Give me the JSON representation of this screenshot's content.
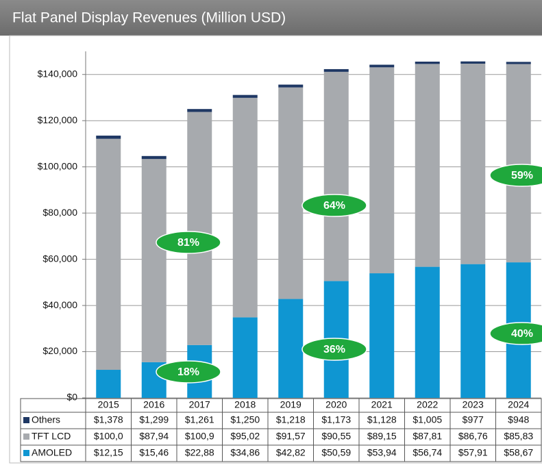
{
  "chart_data": {
    "type": "stacked_bar",
    "title": "Flat Panel Display Revenues (Million USD)",
    "categories": [
      "2015",
      "2016",
      "2017",
      "2018",
      "2019",
      "2020",
      "2021",
      "2022",
      "2023",
      "2024"
    ],
    "series": [
      {
        "name": "Others",
        "color": "#1f3864",
        "values": [
          1378,
          1299,
          1261,
          1250,
          1218,
          1173,
          1128,
          1005,
          977,
          948
        ],
        "value_labels": [
          "$1,378",
          "$1,299",
          "$1,261",
          "$1,250",
          "$1,218",
          "$1,173",
          "$1,128",
          "$1,005",
          "$977",
          "$948"
        ]
      },
      {
        "name": "TFT LCD",
        "color": "#a7aaae",
        "values": [
          100000,
          87940,
          100900,
          95020,
          91570,
          90550,
          89150,
          87810,
          86760,
          85830
        ],
        "value_labels": [
          "$100,0",
          "$87,94",
          "$100,9",
          "$95,02",
          "$91,57",
          "$90,55",
          "$89,15",
          "$87,81",
          "$86,76",
          "$85,83"
        ]
      },
      {
        "name": "AMOLED",
        "color": "#0f96d2",
        "values": [
          12150,
          15460,
          22880,
          34860,
          42820,
          50590,
          53940,
          56740,
          57910,
          58670
        ],
        "value_labels": [
          "$12,15",
          "$15,46",
          "$22,88",
          "$34,86",
          "$42,82",
          "$50,59",
          "$53,94",
          "$56,74",
          "$57,91",
          "$58,67"
        ]
      }
    ],
    "ylim": [
      0,
      150000
    ],
    "yticks": [
      {
        "value": 0,
        "label": "$0"
      },
      {
        "value": 20000,
        "label": "$20,000"
      },
      {
        "value": 40000,
        "label": "$40,000"
      },
      {
        "value": 60000,
        "label": "$60,000"
      },
      {
        "value": 80000,
        "label": "$80,000"
      },
      {
        "value": 100000,
        "label": "$100,000"
      },
      {
        "value": 120000,
        "label": "$120,000"
      },
      {
        "value": 140000,
        "label": "$140,000"
      }
    ],
    "grid": true,
    "annotations": [
      "81%",
      "18%",
      "64%",
      "36%",
      "59%",
      "40%"
    ],
    "annotation_color": "#1fa83c"
  }
}
